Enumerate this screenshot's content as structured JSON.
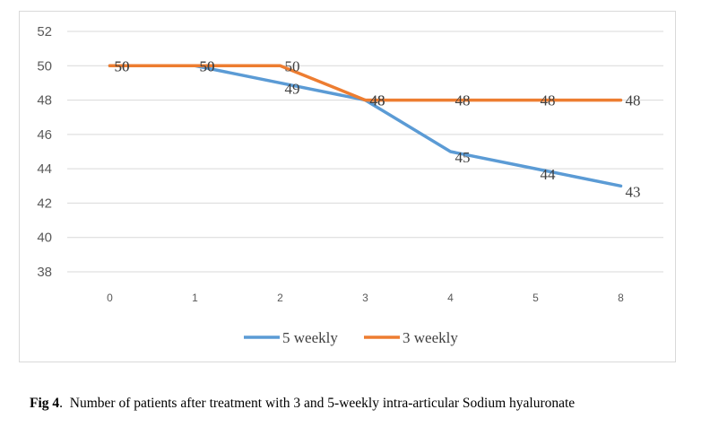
{
  "chart_data": {
    "type": "line",
    "categories": [
      "0",
      "1",
      "2",
      "3",
      "4",
      "5",
      "8"
    ],
    "series": [
      {
        "name": "5 weekly",
        "values": [
          50,
          50,
          49,
          48,
          45,
          44,
          43
        ],
        "color": "#5b9bd5"
      },
      {
        "name": "3 weekly",
        "values": [
          50,
          50,
          50,
          48,
          48,
          48,
          48
        ],
        "color": "#ed7d31"
      }
    ],
    "yticks": [
      "52",
      "50",
      "48",
      "46",
      "44",
      "42",
      "40",
      "38"
    ],
    "ylim": [
      38,
      52
    ],
    "grid": true,
    "legend_position": "bottom"
  },
  "caption": {
    "label": "Fig 4",
    "text": "Number of patients after treatment with 3 and 5-weekly intra-articular Sodium hyaluronate"
  }
}
